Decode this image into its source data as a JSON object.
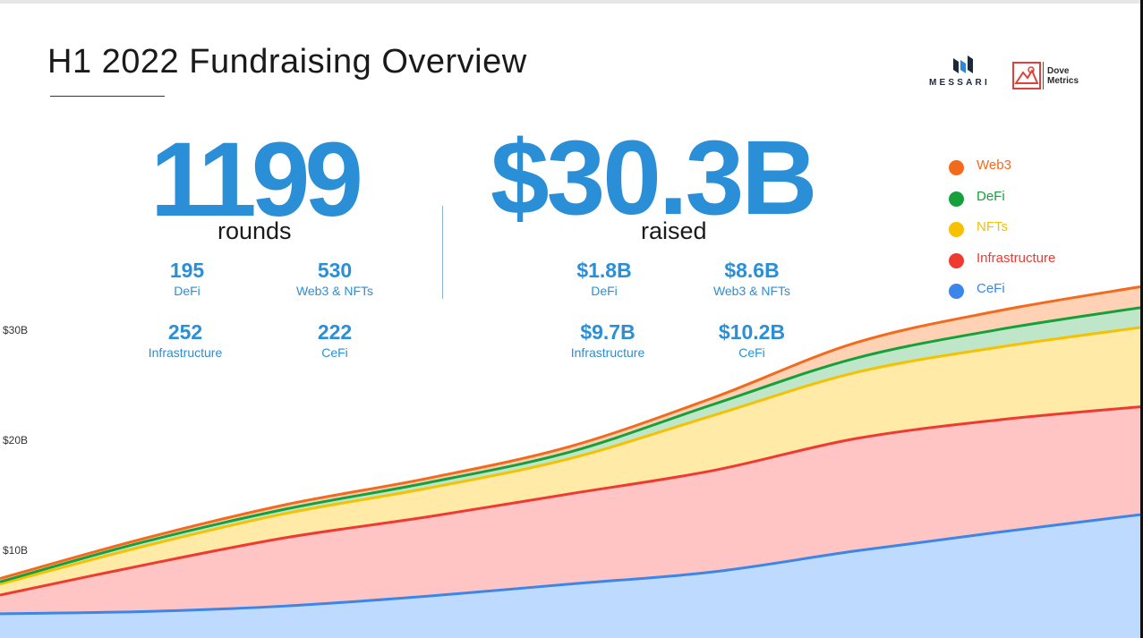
{
  "header": {
    "title": "H1 2022 Fundraising Overview",
    "logo_messari": "MESSARI",
    "logo_dove_line1": "Dove",
    "logo_dove_line2": "Metrics"
  },
  "summary": {
    "rounds": {
      "value": "1199",
      "label": "rounds"
    },
    "raised": {
      "value": "$30.3B",
      "label": "raised"
    }
  },
  "rounds_breakdown": [
    {
      "value": "195",
      "category": "DeFi"
    },
    {
      "value": "530",
      "category": "Web3 & NFTs"
    },
    {
      "value": "252",
      "category": "Infrastructure"
    },
    {
      "value": "222",
      "category": "CeFi"
    }
  ],
  "raised_breakdown": [
    {
      "value": "$1.8B",
      "category": "DeFi"
    },
    {
      "value": "$8.6B",
      "category": "Web3 & NFTs"
    },
    {
      "value": "$9.7B",
      "category": "Infrastructure"
    },
    {
      "value": "$10.2B",
      "category": "CeFi"
    }
  ],
  "colors": {
    "accent": "#2a8fd6",
    "web3": "#f36a1d",
    "defi": "#15a03c",
    "nfts": "#f5c100",
    "infrastructure": "#ef3a31",
    "cefi": "#3b86e8"
  },
  "chart_data": {
    "type": "area",
    "stacked": true,
    "cumulative": true,
    "title": "",
    "xlabel": "",
    "ylabel": "",
    "ylim": [
      0,
      36
    ],
    "y_ticks": [
      "$10B",
      "$20B",
      "$30B"
    ],
    "y_tick_values": [
      10,
      20,
      30
    ],
    "x_count": 9,
    "legend": {
      "placement": "top-right",
      "entries": [
        "Web3",
        "DeFi",
        "NFTs",
        "Infrastructure",
        "CeFi"
      ]
    },
    "series": [
      {
        "name": "CeFi",
        "color": "#3b86e8",
        "fill": "#bfdaff",
        "values": [
          2.2,
          2.4,
          2.9,
          3.8,
          4.9,
          6.0,
          7.9,
          9.6,
          11.2
        ]
      },
      {
        "name": "Infrastructure",
        "color": "#ef3a31",
        "fill": "#ffc4c4",
        "values": [
          1.7,
          4.2,
          6.2,
          7.2,
          8.2,
          9.2,
          10.2,
          10.2,
          9.8
        ]
      },
      {
        "name": "NFTs",
        "color": "#f5c100",
        "fill": "#ffeaa7",
        "values": [
          1.0,
          1.7,
          2.2,
          2.6,
          3.2,
          5.0,
          6.0,
          6.6,
          7.2
        ]
      },
      {
        "name": "DeFi",
        "color": "#15a03c",
        "fill": "#bfe6c8",
        "values": [
          0.2,
          0.4,
          0.4,
          0.5,
          0.6,
          1.0,
          1.3,
          1.6,
          1.8
        ]
      },
      {
        "name": "Web3",
        "color": "#f36a1d",
        "fill": "#ffd2b5",
        "values": [
          0.3,
          0.3,
          0.4,
          0.4,
          0.5,
          0.6,
          1.4,
          1.7,
          1.9
        ]
      }
    ]
  }
}
